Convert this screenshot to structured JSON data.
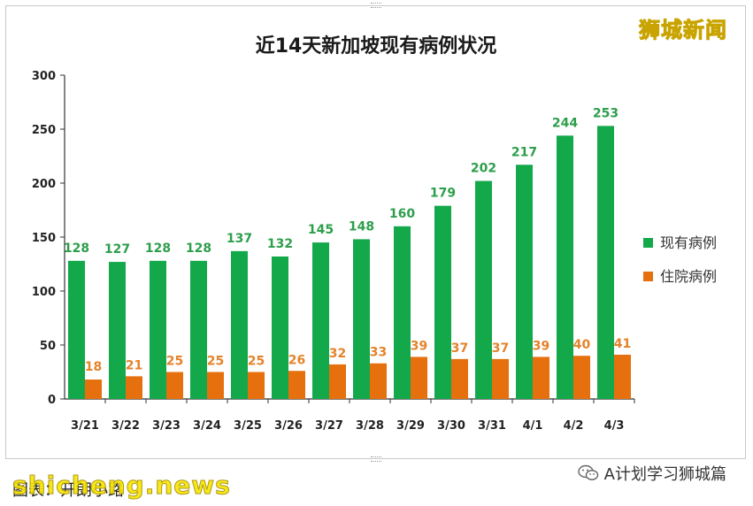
{
  "watermark_top": "狮城新闻",
  "footer": {
    "credit": "图表：开朗小路",
    "site": "shicheng.news",
    "account": "A计划学习狮城篇",
    "account_icon": "wechat-icon"
  },
  "colors": {
    "series_current": "#13a84a",
    "series_hospital": "#e5700d",
    "label_current": "#2d9e4b",
    "label_hospital": "#e5822a"
  },
  "chart_data": {
    "type": "bar",
    "title": "近14天新加坡现有病例状况",
    "categories": [
      "3/21",
      "3/22",
      "3/23",
      "3/24",
      "3/25",
      "3/26",
      "3/27",
      "3/28",
      "3/29",
      "3/30",
      "3/31",
      "4/1",
      "4/2",
      "4/3"
    ],
    "series": [
      {
        "name": "现有病例",
        "values": [
          128,
          127,
          128,
          128,
          137,
          132,
          145,
          148,
          160,
          179,
          202,
          217,
          244,
          253
        ]
      },
      {
        "name": "住院病例",
        "values": [
          18,
          21,
          25,
          25,
          25,
          26,
          32,
          33,
          39,
          37,
          37,
          39,
          40,
          41
        ]
      }
    ],
    "ylim": [
      0,
      300
    ],
    "yticks": [
      "0",
      "50",
      "100",
      "150",
      "200",
      "250",
      "300"
    ],
    "legend_position": "right",
    "grid": false
  }
}
